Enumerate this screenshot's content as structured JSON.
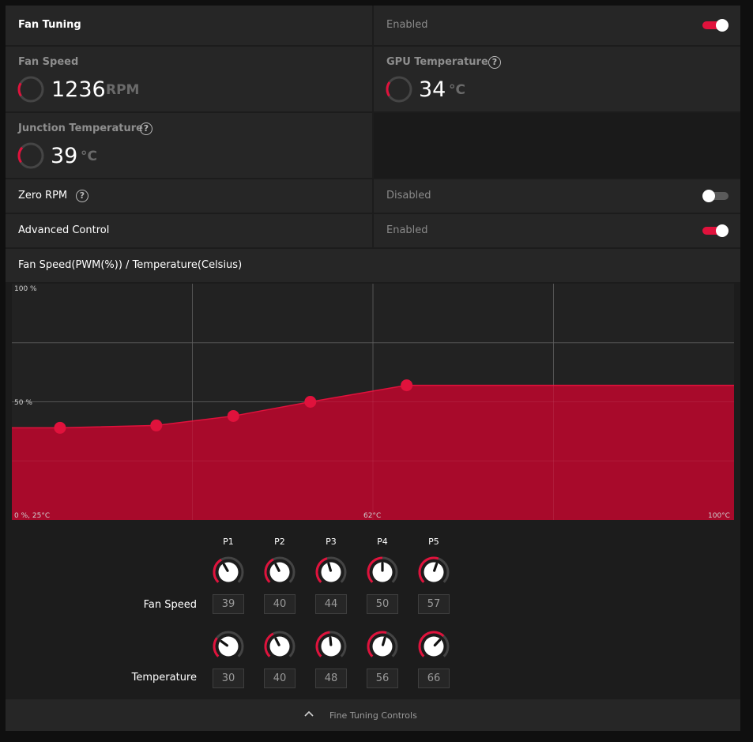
{
  "header": {
    "title": "Fan Tuning",
    "state": "Enabled",
    "toggle_on": true
  },
  "fan_speed": {
    "label": "Fan Speed",
    "value": "1236",
    "unit": "RPM",
    "gauge_fraction": 0.3
  },
  "gpu_temp": {
    "label": "GPU Temperature",
    "value": "34",
    "unit": "°C",
    "gauge_fraction": 0.34
  },
  "junction_temp": {
    "label": "Junction Temperature",
    "value": "39",
    "unit": "°C",
    "gauge_fraction": 0.39
  },
  "zero_rpm": {
    "label": "Zero RPM",
    "state": "Disabled",
    "toggle_on": false
  },
  "advanced_control": {
    "label": "Advanced Control",
    "state": "Enabled",
    "toggle_on": true
  },
  "graph": {
    "title": "Fan Speed(PWM(%)) / Temperature(Celsius)",
    "y_top": "100 %",
    "y_mid": "50 %",
    "x_origin": "0 %, 25°C",
    "x_mid": "62°C",
    "x_max": "100°C"
  },
  "chart_data": {
    "type": "area",
    "xlabel": "Temperature",
    "ylabel": "Fan Speed",
    "xlim": [
      25,
      100
    ],
    "ylim": [
      0,
      100
    ],
    "x": [
      30,
      40,
      48,
      56,
      66
    ],
    "series": [
      {
        "name": "Fan Speed",
        "values": [
          39,
          40,
          44,
          50,
          57
        ]
      }
    ],
    "grid": true,
    "color": "#b00a2c",
    "point_color": "#e0123c"
  },
  "points": {
    "labels": [
      "P1",
      "P2",
      "P3",
      "P4",
      "P5"
    ],
    "fan_speed_label": "Fan Speed",
    "temperature_label": "Temperature",
    "fan_speed": [
      "39",
      "40",
      "44",
      "50",
      "57"
    ],
    "temperature": [
      "30",
      "40",
      "48",
      "56",
      "66"
    ]
  },
  "footer": {
    "label": "Fine Tuning Controls",
    "icon": "chevron-up-icon"
  },
  "colors": {
    "accent": "#e0123c",
    "fill": "#b00a2c"
  }
}
